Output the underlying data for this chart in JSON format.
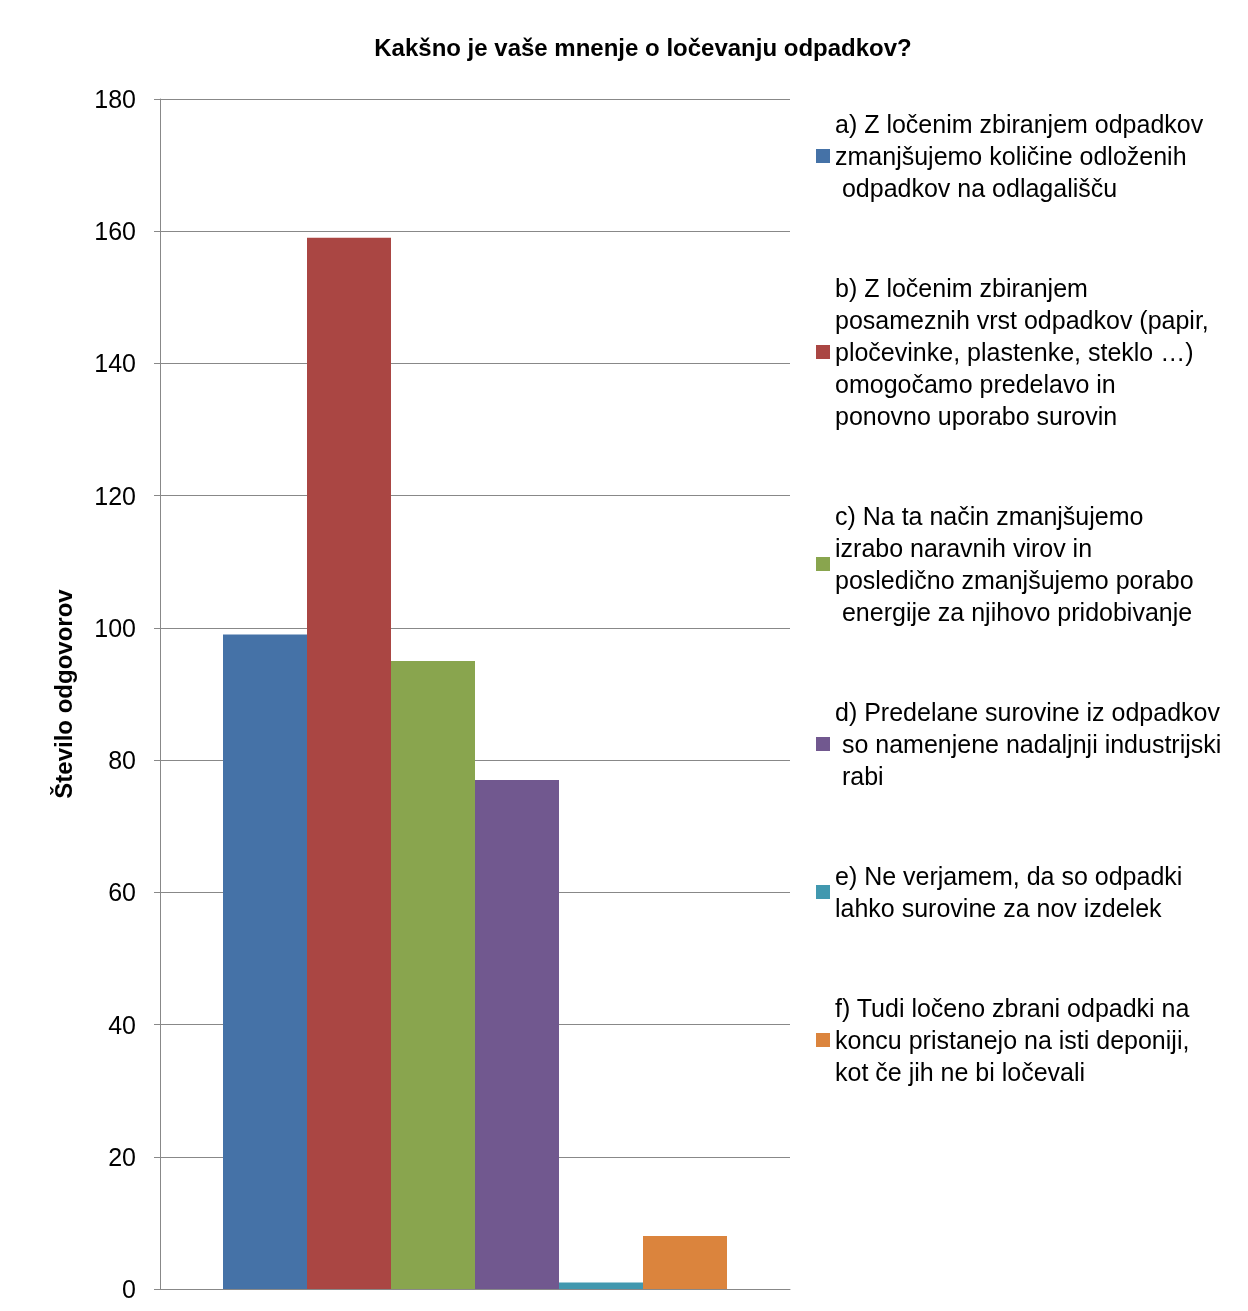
{
  "chart_data": {
    "type": "bar",
    "title": "Kakšno je vaše mnenje o ločevanju odpadkov?",
    "ylabel": "Število odgovorov",
    "categories": [
      null
    ],
    "series": [
      {
        "name": "a) Z ločenim zbiranjem odpadkov zmanjšujemo količine odloženih odpadkov na odlagališču",
        "color": "#4572a7",
        "values": [
          99
        ]
      },
      {
        "name": "b) Z ločenim zbiranjem posameznih vrst odpadkov (papir, pločevinke, plastenke, steklo …) omogočamo predelavo in ponovno uporabo surovin",
        "color": "#aa4643",
        "values": [
          159
        ]
      },
      {
        "name": "c) Na ta način zmanjšujemo izrabo naravnih virov in posledično zmanjšujemo porabo energije za njihovo pridobivanje",
        "color": "#89a54e",
        "values": [
          95
        ]
      },
      {
        "name": "d) Predelane surovine iz odpadkov so namenjene nadaljnji industrijski rabi",
        "color": "#71588f",
        "values": [
          77
        ]
      },
      {
        "name": "e) Ne verjamem, da so odpadki lahko surovine za nov izdelek",
        "color": "#4198af",
        "values": [
          1
        ]
      },
      {
        "name": "f) Tudi ločeno zbrani odpadki na koncu pristanejo na isti deponiji, kot če jih ne bi ločevali",
        "color": "#db843d",
        "values": [
          8
        ]
      }
    ],
    "ylim": [
      0,
      180
    ],
    "yticks": [
      0,
      20,
      40,
      60,
      80,
      100,
      120,
      140,
      160,
      180
    ],
    "grid": "y",
    "legend": "right"
  }
}
